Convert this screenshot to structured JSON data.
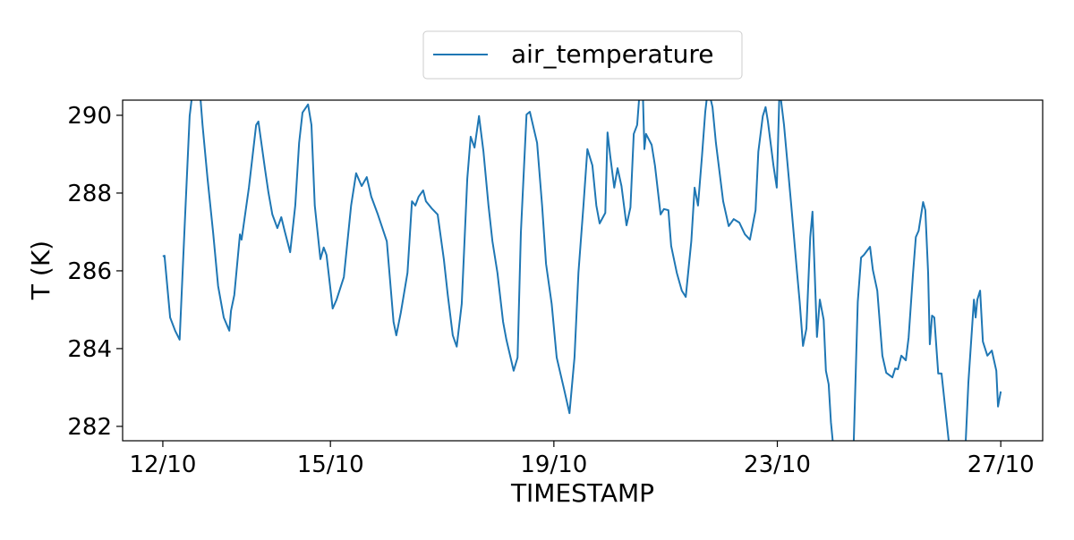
{
  "chart_data": {
    "type": "line",
    "title": "",
    "xlabel": "TIMESTAMP",
    "ylabel": "T (K)",
    "x_unit": "days since 12/10",
    "xlim": [
      -0.72,
      15.75
    ],
    "ylim": [
      281.63,
      290.39
    ],
    "grid": false,
    "legend": {
      "placement": "top-center-outside",
      "entries": [
        "air_temperature"
      ]
    },
    "xticks": [
      {
        "value": 0,
        "label": "12/10"
      },
      {
        "value": 3,
        "label": "15/10"
      },
      {
        "value": 7,
        "label": "19/10"
      },
      {
        "value": 11,
        "label": "23/10"
      },
      {
        "value": 15,
        "label": "27/10"
      }
    ],
    "yticks": [
      {
        "value": 282,
        "label": "282"
      },
      {
        "value": 284,
        "label": "284"
      },
      {
        "value": 286,
        "label": "286"
      },
      {
        "value": 288,
        "label": "288"
      },
      {
        "value": 290,
        "label": "290"
      }
    ],
    "series": [
      {
        "name": "air_temperature",
        "color": "#1f77b4",
        "x": [
          0,
          0.03,
          0.13,
          0.22,
          0.3,
          0.4,
          0.48,
          0.54,
          0.66,
          0.71,
          0.8,
          0.9,
          0.99,
          1.09,
          1.19,
          1.22,
          1.28,
          1.38,
          1.41,
          1.54,
          1.67,
          1.71,
          1.83,
          1.89,
          1.96,
          2.05,
          2.12,
          2.18,
          2.28,
          2.37,
          2.44,
          2.5,
          2.6,
          2.66,
          2.72,
          2.82,
          2.88,
          2.93,
          3.04,
          3.11,
          3.24,
          3.37,
          3.46,
          3.56,
          3.65,
          3.73,
          3.85,
          4.01,
          4.13,
          4.18,
          4.26,
          4.38,
          4.46,
          4.52,
          4.58,
          4.66,
          4.71,
          4.81,
          4.92,
          5.03,
          5.1,
          5.19,
          5.26,
          5.35,
          5.45,
          5.51,
          5.58,
          5.66,
          5.74,
          5.83,
          5.9,
          5.99,
          6.09,
          6.15,
          6.28,
          6.35,
          6.41,
          6.51,
          6.57,
          6.7,
          6.79,
          6.86,
          6.96,
          7.05,
          7.18,
          7.28,
          7.37,
          7.44,
          7.53,
          7.6,
          7.69,
          7.76,
          7.82,
          7.92,
          7.96,
          8.01,
          8.08,
          8.14,
          8.21,
          8.3,
          8.37,
          8.43,
          8.49,
          8.54,
          8.59,
          8.62,
          8.65,
          8.75,
          8.81,
          8.91,
          8.97,
          9.05,
          9.1,
          9.2,
          9.29,
          9.36,
          9.46,
          9.52,
          9.58,
          9.65,
          9.71,
          9.76,
          9.84,
          9.9,
          10.03,
          10.13,
          10.22,
          10.32,
          10.42,
          10.51,
          10.61,
          10.66,
          10.74,
          10.79,
          10.83,
          10.93,
          10.99,
          11.04,
          11.12,
          11.25,
          11.35,
          11.4,
          11.46,
          11.52,
          11.59,
          11.63,
          11.67,
          11.71,
          11.76,
          11.83,
          11.87,
          11.92,
          11.96,
          12.02,
          12.23,
          12.36,
          12.44,
          12.5,
          12.55,
          12.66,
          12.71,
          12.79,
          12.88,
          12.95,
          13.06,
          13.11,
          13.16,
          13.22,
          13.3,
          13.35,
          13.43,
          13.48,
          13.53,
          13.61,
          13.65,
          13.7,
          13.73,
          13.77,
          13.81,
          13.88,
          13.94,
          14.02,
          14.1,
          14.23,
          14.36,
          14.42,
          14.52,
          14.55,
          14.58,
          14.63,
          14.68,
          14.76,
          14.84,
          14.92,
          14.95,
          15.0
        ],
        "y": [
          286.37,
          286.39,
          284.8,
          284.46,
          284.23,
          287.45,
          289.98,
          290.7,
          290.7,
          289.75,
          288.37,
          286.99,
          285.61,
          284.8,
          284.46,
          284.97,
          285.38,
          286.94,
          286.8,
          288.14,
          289.75,
          289.84,
          288.6,
          288.02,
          287.45,
          287.1,
          287.38,
          287.03,
          286.48,
          287.68,
          289.29,
          290.07,
          290.28,
          289.75,
          287.68,
          286.3,
          286.6,
          286.41,
          285.03,
          285.26,
          285.84,
          287.68,
          288.51,
          288.18,
          288.41,
          287.91,
          287.45,
          286.76,
          284.69,
          284.34,
          284.92,
          285.95,
          287.79,
          287.68,
          287.91,
          288.07,
          287.79,
          287.61,
          287.45,
          286.3,
          285.38,
          284.34,
          284.05,
          285.15,
          288.37,
          289.45,
          289.17,
          289.98,
          289.06,
          287.68,
          286.76,
          285.95,
          284.69,
          284.23,
          283.43,
          283.77,
          286.99,
          290.02,
          290.09,
          289.29,
          287.68,
          286.18,
          285.15,
          283.77,
          282.97,
          282.34,
          283.77,
          285.95,
          287.68,
          289.13,
          288.71,
          287.68,
          287.22,
          287.49,
          289.56,
          288.94,
          288.14,
          288.64,
          288.18,
          287.17,
          287.63,
          289.52,
          289.75,
          290.7,
          290.7,
          289.13,
          289.52,
          289.24,
          288.71,
          287.45,
          287.59,
          287.56,
          286.64,
          285.95,
          285.49,
          285.33,
          286.76,
          288.14,
          287.68,
          288.94,
          290.09,
          290.7,
          290.21,
          289.29,
          287.79,
          287.15,
          287.33,
          287.24,
          286.94,
          286.8,
          287.56,
          289.06,
          289.98,
          290.21,
          289.86,
          288.71,
          288.14,
          290.7,
          289.75,
          287.68,
          286.0,
          285.2,
          284.07,
          284.51,
          286.87,
          287.52,
          285.95,
          284.3,
          285.26,
          284.74,
          283.43,
          283.08,
          282.11,
          281.2,
          280.5,
          281.2,
          285.2,
          286.34,
          286.41,
          286.62,
          286.02,
          285.49,
          283.82,
          283.38,
          283.26,
          283.49,
          283.47,
          283.82,
          283.7,
          284.28,
          285.95,
          286.87,
          287.03,
          287.77,
          287.56,
          285.95,
          284.11,
          284.85,
          284.8,
          283.36,
          283.36,
          282.28,
          281.2,
          280.5,
          281.2,
          283.13,
          285.26,
          284.8,
          285.26,
          285.49,
          284.18,
          283.82,
          283.95,
          283.43,
          282.51,
          282.9
        ]
      }
    ]
  }
}
